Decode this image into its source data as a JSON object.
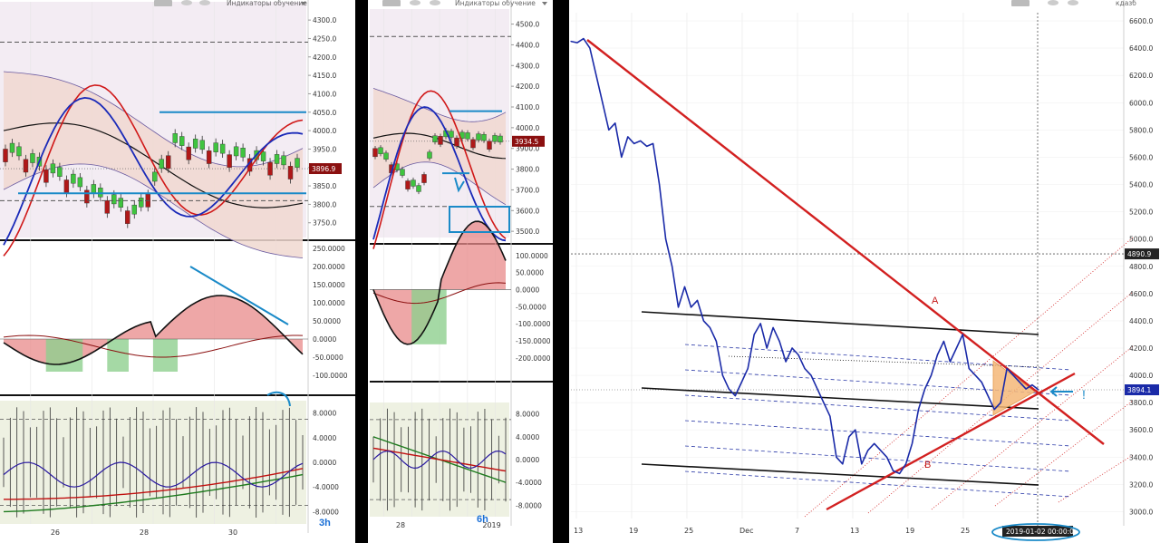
{
  "toolbar": {
    "indicators_label": "Индикаторы обучение",
    "corner_label": "кдазб"
  },
  "colors": {
    "candle_up": "#3fc43f",
    "candle_down": "#b01818",
    "price_line": "#1a2aa8",
    "trendline": "#d22020",
    "channel": "#111111",
    "annotation": "#1a8ac8",
    "price_tag": "#8b1010"
  },
  "chart_data": [
    {
      "id": "3h",
      "type": "line",
      "timeframe_label": "3h",
      "x_ticks": [
        "26",
        "28",
        "30"
      ],
      "price_panel": {
        "y_ticks": [
          "4300.0",
          "4250.0",
          "4200.0",
          "4150.0",
          "4100.0",
          "4050.0",
          "4000.0",
          "3950.0",
          "3900.0",
          "3850.0",
          "3800.0",
          "3750.0"
        ],
        "ylim": [
          3710,
          4320
        ],
        "last_price": "3896.9",
        "horizontal_levels": [
          4050,
          3830
        ]
      },
      "osc_panel": {
        "y_ticks": [
          "250.0000",
          "200.0000",
          "150.0000",
          "100.0000",
          "50.0000",
          "0.0000",
          "-50.0000",
          "-100.0000"
        ],
        "ylim": [
          -115,
          260
        ]
      },
      "bottom_panel": {
        "y_ticks": [
          "8.0000",
          "4.0000",
          "0.0000",
          "-4.0000",
          "-8.0000"
        ],
        "ylim": [
          -10,
          10
        ]
      }
    },
    {
      "id": "6h",
      "type": "line",
      "timeframe_label": "6h",
      "x_ticks": [
        "28",
        "2019"
      ],
      "price_panel": {
        "y_ticks": [
          "4500.0",
          "4400.0",
          "4300.0",
          "4200.0",
          "4100.0",
          "4000.0",
          "3900.0",
          "3800.0",
          "3700.0",
          "3600.0",
          "3500.0"
        ],
        "ylim": [
          3470,
          4520
        ],
        "last_price": "3934.5",
        "horizontal_levels": [
          4080,
          3780
        ]
      },
      "osc_panel": {
        "y_ticks": [
          "100.0000",
          "50.0000",
          "0.0000",
          "-50.0000",
          "-100.0000",
          "-150.0000",
          "-200.0000"
        ],
        "ylim": [
          -240,
          110
        ]
      },
      "bottom_panel": {
        "y_ticks": [
          "8.0000",
          "4.0000",
          "0.0000",
          "-4.0000",
          "-8.0000"
        ],
        "ylim": [
          -10,
          10
        ]
      }
    },
    {
      "id": "daily",
      "type": "line",
      "x_ticks": [
        "13",
        "19",
        "25",
        "Dec",
        "7",
        "13",
        "19",
        "25"
      ],
      "y_ticks": [
        "6600.0",
        "6400.0",
        "6200.0",
        "6000.0",
        "5800.0",
        "5600.0",
        "5400.0",
        "5200.0",
        "5000.0",
        "4800.0",
        "4600.0",
        "4400.0",
        "4200.0",
        "4000.0",
        "3800.0",
        "3600.0",
        "3400.0",
        "3200.0",
        "3000.0"
      ],
      "ylim": [
        2950,
        6660
      ],
      "last_price": "3894.1",
      "crosshair_price": "4890.9",
      "crosshair_date": "2019-01-02 00:00:00",
      "annotations": [
        "A",
        "B",
        "!"
      ],
      "series": [
        {
          "values": [
            6450,
            6440,
            6470,
            6400,
            6200,
            6000,
            5800,
            5850,
            5600,
            5750,
            5700,
            5720,
            5680,
            5700,
            5400,
            5000,
            4800,
            4500,
            4650,
            4500,
            4550,
            4400,
            4350,
            4250,
            4000,
            3900,
            3850,
            3950,
            4050,
            4300,
            4380,
            4200,
            4350,
            4250,
            4100,
            4200,
            4150,
            4050,
            4000,
            3900,
            3800,
            3700,
            3400,
            3350,
            3550,
            3600,
            3350,
            3450,
            3500,
            3450,
            3400,
            3300,
            3280,
            3350,
            3500,
            3750,
            3900,
            4000,
            4150,
            4250,
            4100,
            4200,
            4300,
            4050,
            4000,
            3950,
            3850,
            3750,
            3800,
            4050,
            4000,
            3950,
            3900,
            3930,
            3894
          ]
        }
      ]
    }
  ]
}
